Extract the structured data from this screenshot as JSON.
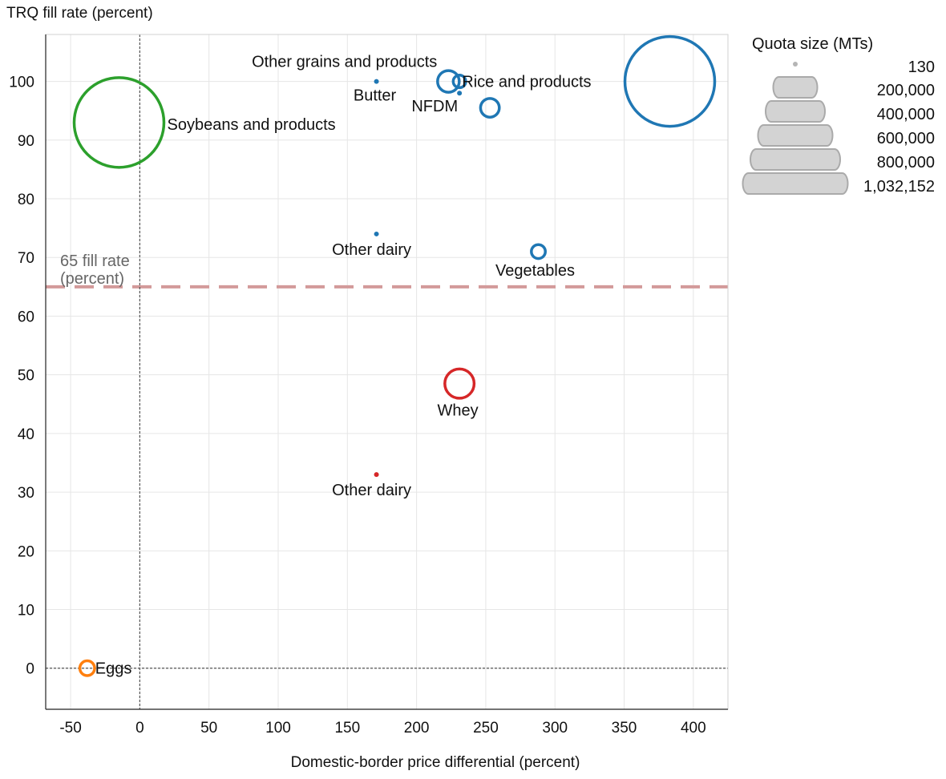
{
  "chart_data": {
    "type": "scatter",
    "subtype": "bubble",
    "ylabel": "TRQ fill rate (percent)",
    "xlabel": "Domestic-border price differential (percent)",
    "xlim": [
      -68,
      425
    ],
    "ylim": [
      -7,
      108
    ],
    "x_ticks": [
      -50,
      0,
      50,
      100,
      150,
      200,
      250,
      300,
      350,
      400
    ],
    "y_ticks": [
      0,
      10,
      20,
      30,
      40,
      50,
      60,
      70,
      80,
      90,
      100
    ],
    "grid": true,
    "points": [
      {
        "label": "Soybeans and products",
        "x": -15,
        "y": 93,
        "size": 1032152,
        "color": "#2ca02c"
      },
      {
        "label": "Rice and products",
        "x": 383,
        "y": 100,
        "size": 1032152,
        "color": "#1f77b4"
      },
      {
        "label": "Other grains and products",
        "x": 223,
        "y": 100,
        "size": 60000,
        "color": "#1f77b4"
      },
      {
        "label": "",
        "x": 231,
        "y": 100,
        "size": 20000,
        "color": "#1f77b4"
      },
      {
        "label": "NFDM",
        "x": 231,
        "y": 98,
        "size": 800,
        "color": "#1f77b4"
      },
      {
        "label": "Butter",
        "x": 171,
        "y": 100,
        "size": 400,
        "color": "#1f77b4"
      },
      {
        "label": "",
        "x": 253,
        "y": 95.5,
        "size": 45000,
        "color": "#1f77b4"
      },
      {
        "label": "Other dairy",
        "x": 171,
        "y": 74,
        "size": 500,
        "color": "#1f77b4"
      },
      {
        "label": "Vegetables",
        "x": 288,
        "y": 71,
        "size": 25000,
        "color": "#1f77b4"
      },
      {
        "label": "Whey",
        "x": 231,
        "y": 48.5,
        "size": 110000,
        "color": "#d62728"
      },
      {
        "label": "Other dairy",
        "x": 171,
        "y": 33,
        "size": 400,
        "color": "#d62728"
      },
      {
        "label": "Eggs",
        "x": -38,
        "y": 0,
        "size": 28000,
        "color": "#ff7f0e"
      }
    ],
    "reference_lines": [
      {
        "axis": "y",
        "value": 65,
        "label_line1": "65 fill rate",
        "label_line2": "(percent)",
        "color": "#d39a9a",
        "style": "dashed"
      },
      {
        "axis": "x",
        "value": 0,
        "color": "#555555",
        "style": "dotted"
      },
      {
        "axis": "y",
        "value": 0,
        "color": "#555555",
        "style": "dotted"
      }
    ],
    "size_legend": {
      "title": "Quota size (MTs)",
      "entries": [
        {
          "label": "130",
          "value": 130
        },
        {
          "label": "200,000",
          "value": 200000
        },
        {
          "label": "400,000",
          "value": 400000
        },
        {
          "label": "600,000",
          "value": 600000
        },
        {
          "label": "800,000",
          "value": 800000
        },
        {
          "label": "1,032,152",
          "value": 1032152
        }
      ]
    }
  }
}
